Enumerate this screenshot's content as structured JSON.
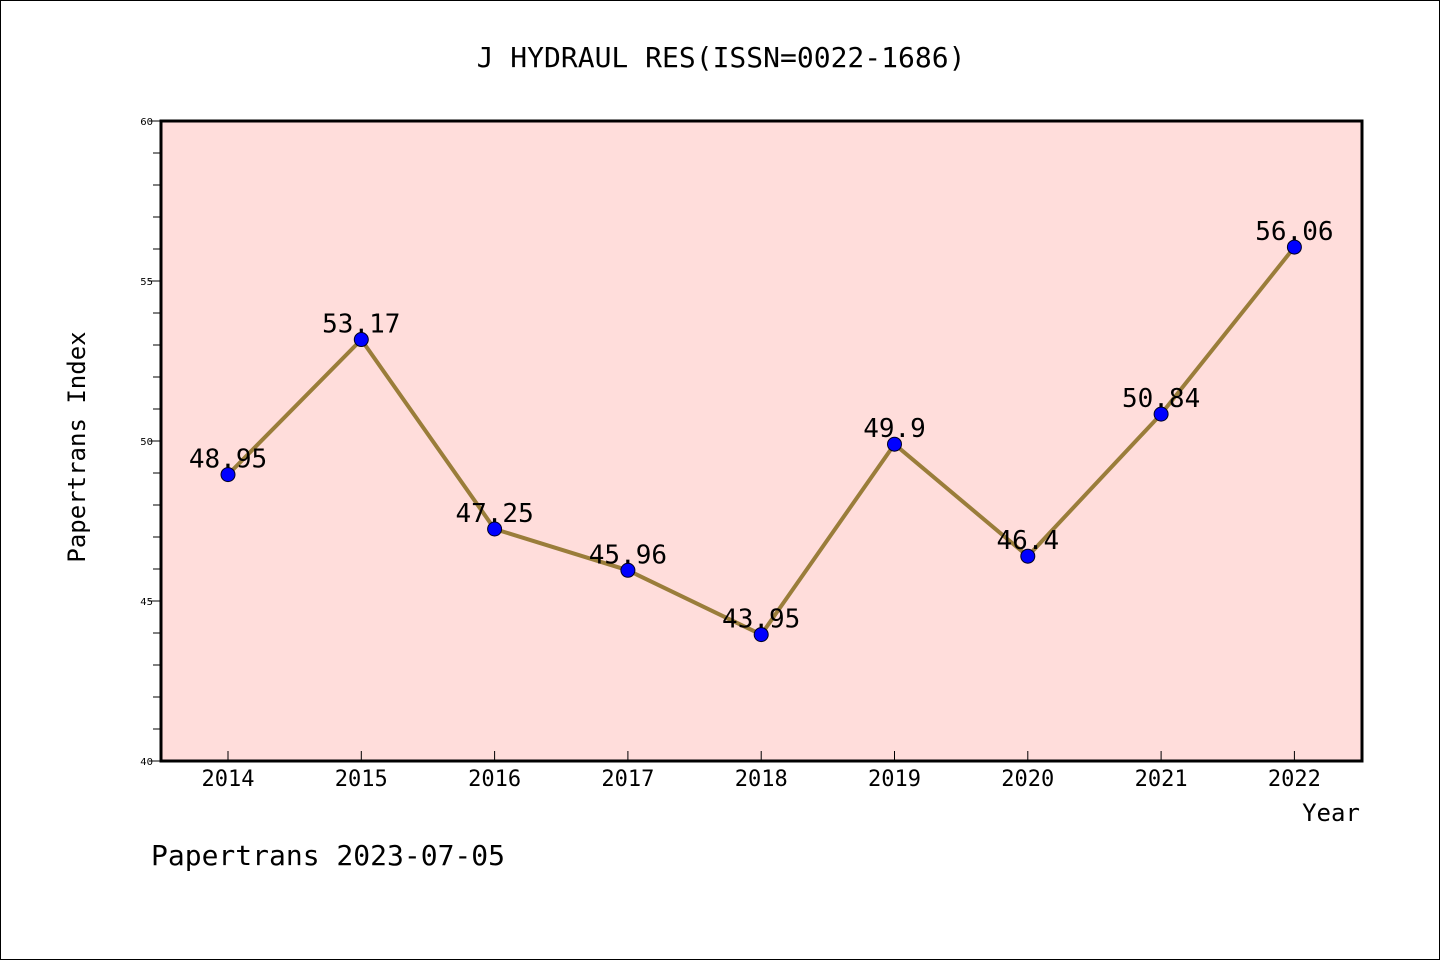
{
  "chart_data": {
    "type": "line",
    "title": "J HYDRAUL RES(ISSN=0022-1686)",
    "xlabel": "Year",
    "ylabel": "Papertrans Index",
    "categories": [
      "2014",
      "2015",
      "2016",
      "2017",
      "2018",
      "2019",
      "2020",
      "2021",
      "2022"
    ],
    "series": [
      {
        "values": [
          48.95,
          53.17,
          47.25,
          45.96,
          43.95,
          49.9,
          46.4,
          50.84,
          56.06
        ],
        "data_labels": [
          "48.95",
          "53.17",
          "47.25",
          "45.96",
          "43.95",
          "49.9",
          "46.4",
          "50.84",
          "56.06"
        ]
      }
    ],
    "ylim": [
      40,
      60
    ],
    "yticks": [
      "40",
      "45",
      "50",
      "55",
      "60"
    ],
    "grid": false,
    "colors": {
      "plot_background": "#FFDDDB",
      "line": "#9A7D3A",
      "marker": "#0000FF"
    }
  },
  "footer": {
    "text": "Papertrans 2023-07-05"
  }
}
